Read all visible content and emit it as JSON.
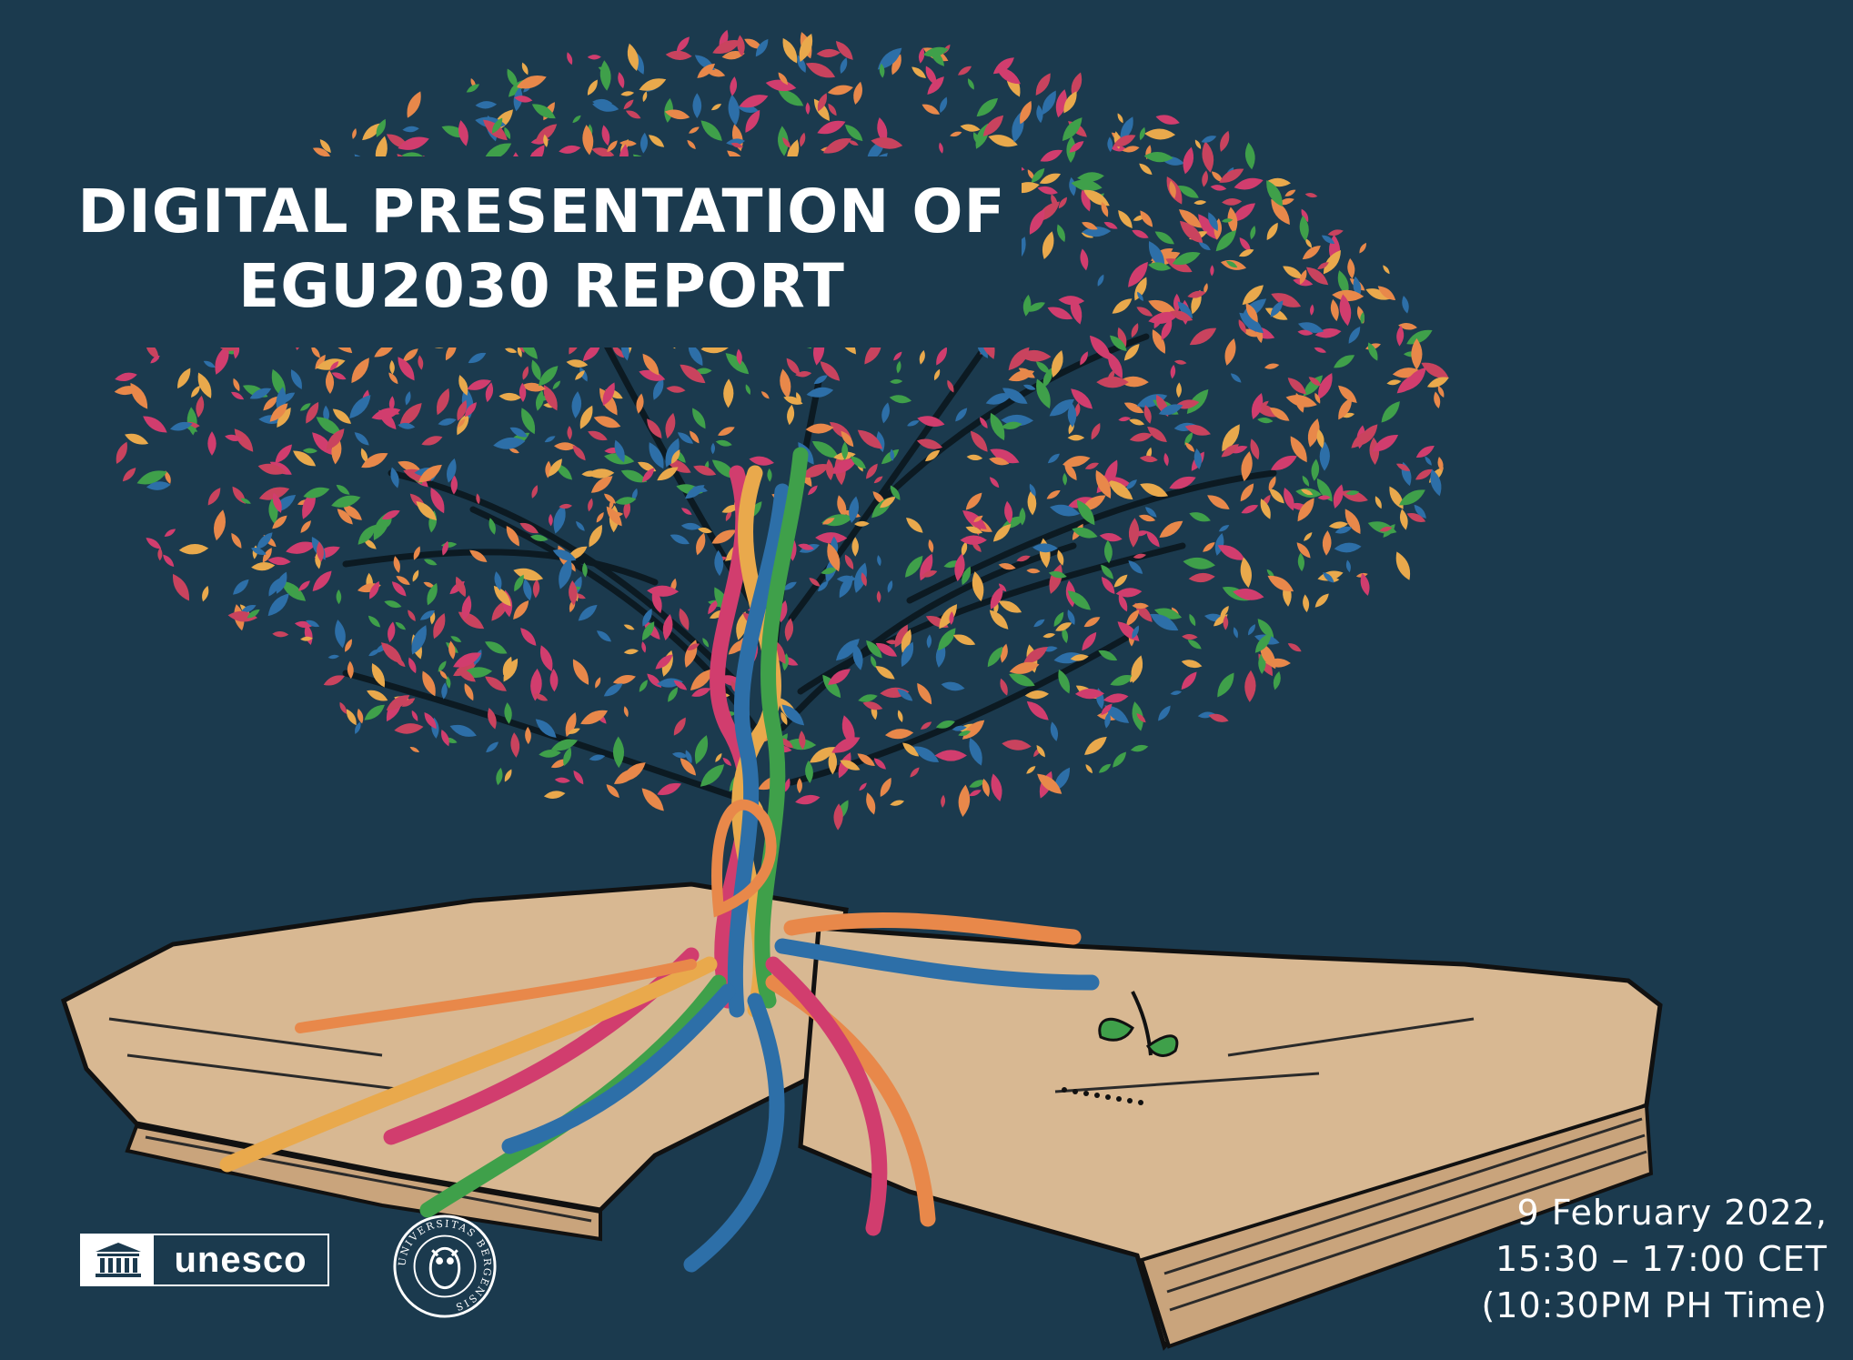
{
  "poster": {
    "title_line_1": "DIGITAL PRESENTATION OF",
    "title_line_2": "EGU2030 REPORT",
    "date_line_1": "9 February 2022,",
    "date_line_2": "15:30 – 17:00 CET",
    "date_line_3": "(10:30PM PH Time)"
  },
  "logos": {
    "unesco_word": "unesco",
    "uib_seal_text": "UNIVERSITAS BERGENSIS"
  },
  "colors": {
    "background": "#1b3a4e",
    "leaf_palette": [
      "#e8884a",
      "#d13d6e",
      "#3fa04a",
      "#2d6fa8",
      "#e9a94c",
      "#c9435e"
    ],
    "book": "#d8b892"
  },
  "icons": {
    "illustration": "tree-growing-from-open-book",
    "unesco": "unesco-temple-icon",
    "uib": "university-owl-seal-icon"
  }
}
